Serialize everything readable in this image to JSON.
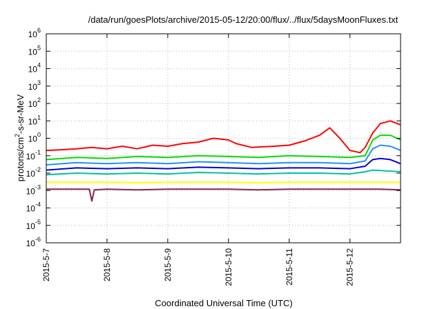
{
  "chart_data": {
    "type": "line",
    "title": "/data/run/goesPlots/archive/2015-05-12/20:00/flux/../flux/5daysMoonFluxes.txt",
    "xlabel": "Coordinated Universal Time (UTC)",
    "ylabel": "protons/cm2-s-sr-MeV",
    "ylabel_parts": [
      "protons/cm",
      "2",
      "-s-sr-MeV"
    ],
    "x_type": "time",
    "x_range": [
      "2015-05-07T00:00",
      "2015-05-12T20:00"
    ],
    "x_ticks": [
      {
        "x": "2015-05-07T00:00",
        "label": "2015-5-7"
      },
      {
        "x": "2015-05-08T00:00",
        "label": "2015-5-8"
      },
      {
        "x": "2015-05-09T00:00",
        "label": "2015-5-9"
      },
      {
        "x": "2015-05-10T00:00",
        "label": "2015-5-10"
      },
      {
        "x": "2015-05-11T00:00",
        "label": "2015-5-11"
      },
      {
        "x": "2015-05-12T00:00",
        "label": "2015-5-12"
      }
    ],
    "y_scale": "log",
    "ylim": [
      1e-06,
      1000000.0
    ],
    "y_ticks": [
      {
        "value": 1e-06,
        "base": "10",
        "exp": "-6"
      },
      {
        "value": 1e-05,
        "base": "10",
        "exp": "-5"
      },
      {
        "value": 0.0001,
        "base": "10",
        "exp": "-4"
      },
      {
        "value": 0.001,
        "base": "10",
        "exp": "-3"
      },
      {
        "value": 0.01,
        "base": "10",
        "exp": "-2"
      },
      {
        "value": 0.1,
        "base": "10",
        "exp": "-1"
      },
      {
        "value": 1,
        "base": "10",
        "exp": "0"
      },
      {
        "value": 10,
        "base": "10",
        "exp": "1"
      },
      {
        "value": 100,
        "base": "10",
        "exp": "2"
      },
      {
        "value": 1000,
        "base": "10",
        "exp": "3"
      },
      {
        "value": 10000,
        "base": "10",
        "exp": "4"
      },
      {
        "value": 100000,
        "base": "10",
        "exp": "5"
      },
      {
        "value": 1000000,
        "base": "10",
        "exp": "6"
      }
    ],
    "grid": true,
    "legend": "none",
    "series": [
      {
        "color": "#ff0000",
        "points": [
          [
            "2015-05-07T00:00",
            0.2
          ],
          [
            "2015-05-07T06:00",
            0.22
          ],
          [
            "2015-05-07T12:00",
            0.25
          ],
          [
            "2015-05-07T18:00",
            0.3
          ],
          [
            "2015-05-08T00:00",
            0.25
          ],
          [
            "2015-05-08T06:00",
            0.35
          ],
          [
            "2015-05-08T12:00",
            0.25
          ],
          [
            "2015-05-08T18:00",
            0.4
          ],
          [
            "2015-05-09T00:00",
            0.35
          ],
          [
            "2015-05-09T06:00",
            0.5
          ],
          [
            "2015-05-09T12:00",
            0.6
          ],
          [
            "2015-05-09T18:00",
            1.0
          ],
          [
            "2015-05-10T00:00",
            0.8
          ],
          [
            "2015-05-10T03:00",
            0.5
          ],
          [
            "2015-05-10T09:00",
            0.3
          ],
          [
            "2015-05-10T18:00",
            0.35
          ],
          [
            "2015-05-11T00:00",
            0.4
          ],
          [
            "2015-05-11T06:00",
            0.7
          ],
          [
            "2015-05-11T12:00",
            1.5
          ],
          [
            "2015-05-11T16:00",
            4.0
          ],
          [
            "2015-05-11T20:00",
            1.0
          ],
          [
            "2015-05-12T00:00",
            0.2
          ],
          [
            "2015-05-12T04:00",
            0.15
          ],
          [
            "2015-05-12T06:00",
            0.3
          ],
          [
            "2015-05-12T09:00",
            2.0
          ],
          [
            "2015-05-12T12:00",
            7.0
          ],
          [
            "2015-05-12T16:00",
            10.0
          ],
          [
            "2015-05-12T20:00",
            6.0
          ]
        ]
      },
      {
        "color": "#00dd00",
        "points": [
          [
            "2015-05-07T00:00",
            0.06
          ],
          [
            "2015-05-07T12:00",
            0.08
          ],
          [
            "2015-05-08T00:00",
            0.07
          ],
          [
            "2015-05-08T12:00",
            0.09
          ],
          [
            "2015-05-09T00:00",
            0.08
          ],
          [
            "2015-05-09T12:00",
            0.1
          ],
          [
            "2015-05-10T00:00",
            0.09
          ],
          [
            "2015-05-10T12:00",
            0.08
          ],
          [
            "2015-05-11T00:00",
            0.1
          ],
          [
            "2015-05-11T12:00",
            0.09
          ],
          [
            "2015-05-12T00:00",
            0.08
          ],
          [
            "2015-05-12T06:00",
            0.1
          ],
          [
            "2015-05-12T09:00",
            0.8
          ],
          [
            "2015-05-12T12:00",
            1.5
          ],
          [
            "2015-05-12T16:00",
            1.5
          ],
          [
            "2015-05-12T20:00",
            0.8
          ]
        ]
      },
      {
        "color": "#1e90ff",
        "points": [
          [
            "2015-05-07T00:00",
            0.03
          ],
          [
            "2015-05-07T12:00",
            0.04
          ],
          [
            "2015-05-08T00:00",
            0.035
          ],
          [
            "2015-05-08T12:00",
            0.04
          ],
          [
            "2015-05-09T00:00",
            0.035
          ],
          [
            "2015-05-09T12:00",
            0.045
          ],
          [
            "2015-05-10T00:00",
            0.04
          ],
          [
            "2015-05-10T12:00",
            0.035
          ],
          [
            "2015-05-11T00:00",
            0.04
          ],
          [
            "2015-05-11T12:00",
            0.04
          ],
          [
            "2015-05-12T00:00",
            0.035
          ],
          [
            "2015-05-12T06:00",
            0.05
          ],
          [
            "2015-05-12T09:00",
            0.25
          ],
          [
            "2015-05-12T12:00",
            0.4
          ],
          [
            "2015-05-12T16:00",
            0.35
          ],
          [
            "2015-05-12T20:00",
            0.2
          ]
        ]
      },
      {
        "color": "#0000dd",
        "points": [
          [
            "2015-05-07T00:00",
            0.015
          ],
          [
            "2015-05-07T12:00",
            0.02
          ],
          [
            "2015-05-08T00:00",
            0.018
          ],
          [
            "2015-05-08T12:00",
            0.02
          ],
          [
            "2015-05-09T00:00",
            0.018
          ],
          [
            "2015-05-09T12:00",
            0.022
          ],
          [
            "2015-05-10T00:00",
            0.02
          ],
          [
            "2015-05-10T12:00",
            0.018
          ],
          [
            "2015-05-11T00:00",
            0.02
          ],
          [
            "2015-05-11T12:00",
            0.02
          ],
          [
            "2015-05-12T00:00",
            0.018
          ],
          [
            "2015-05-12T06:00",
            0.025
          ],
          [
            "2015-05-12T09:00",
            0.06
          ],
          [
            "2015-05-12T12:00",
            0.07
          ],
          [
            "2015-05-12T16:00",
            0.06
          ],
          [
            "2015-05-12T20:00",
            0.035
          ]
        ]
      },
      {
        "color": "#00c0a0",
        "points": [
          [
            "2015-05-07T00:00",
            0.008
          ],
          [
            "2015-05-07T12:00",
            0.01
          ],
          [
            "2015-05-08T00:00",
            0.009
          ],
          [
            "2015-05-08T12:00",
            0.01
          ],
          [
            "2015-05-09T00:00",
            0.009
          ],
          [
            "2015-05-09T12:00",
            0.011
          ],
          [
            "2015-05-10T00:00",
            0.01
          ],
          [
            "2015-05-10T12:00",
            0.009
          ],
          [
            "2015-05-11T00:00",
            0.01
          ],
          [
            "2015-05-11T12:00",
            0.01
          ],
          [
            "2015-05-12T00:00",
            0.009
          ],
          [
            "2015-05-12T06:00",
            0.012
          ],
          [
            "2015-05-12T09:00",
            0.015
          ],
          [
            "2015-05-12T12:00",
            0.014
          ],
          [
            "2015-05-12T16:00",
            0.013
          ],
          [
            "2015-05-12T20:00",
            0.012
          ]
        ]
      },
      {
        "color": "#ffff00",
        "points": [
          [
            "2015-05-07T00:00",
            0.003
          ],
          [
            "2015-05-07T12:00",
            0.003
          ],
          [
            "2015-05-08T00:00",
            0.003
          ],
          [
            "2015-05-08T12:00",
            0.0028
          ],
          [
            "2015-05-09T00:00",
            0.003
          ],
          [
            "2015-05-09T12:00",
            0.003
          ],
          [
            "2015-05-10T00:00",
            0.003
          ],
          [
            "2015-05-10T12:00",
            0.0028
          ],
          [
            "2015-05-11T00:00",
            0.003
          ],
          [
            "2015-05-11T12:00",
            0.003
          ],
          [
            "2015-05-12T00:00",
            0.003
          ],
          [
            "2015-05-12T12:00",
            0.003
          ],
          [
            "2015-05-12T20:00",
            0.003
          ]
        ]
      },
      {
        "color": "#8b2252",
        "points": [
          [
            "2015-05-07T00:00",
            0.0012
          ],
          [
            "2015-05-07T12:00",
            0.0012
          ],
          [
            "2015-05-07T17:00",
            0.0012
          ],
          [
            "2015-05-07T18:00",
            0.00025
          ],
          [
            "2015-05-07T19:00",
            0.0011
          ],
          [
            "2015-05-08T00:00",
            0.0012
          ],
          [
            "2015-05-08T12:00",
            0.0011
          ],
          [
            "2015-05-09T00:00",
            0.0012
          ],
          [
            "2015-05-09T12:00",
            0.0012
          ],
          [
            "2015-05-10T00:00",
            0.0012
          ],
          [
            "2015-05-10T12:00",
            0.0011
          ],
          [
            "2015-05-11T00:00",
            0.0012
          ],
          [
            "2015-05-11T12:00",
            0.0012
          ],
          [
            "2015-05-12T00:00",
            0.0012
          ],
          [
            "2015-05-12T12:00",
            0.0012
          ],
          [
            "2015-05-12T20:00",
            0.0011
          ]
        ]
      }
    ]
  }
}
